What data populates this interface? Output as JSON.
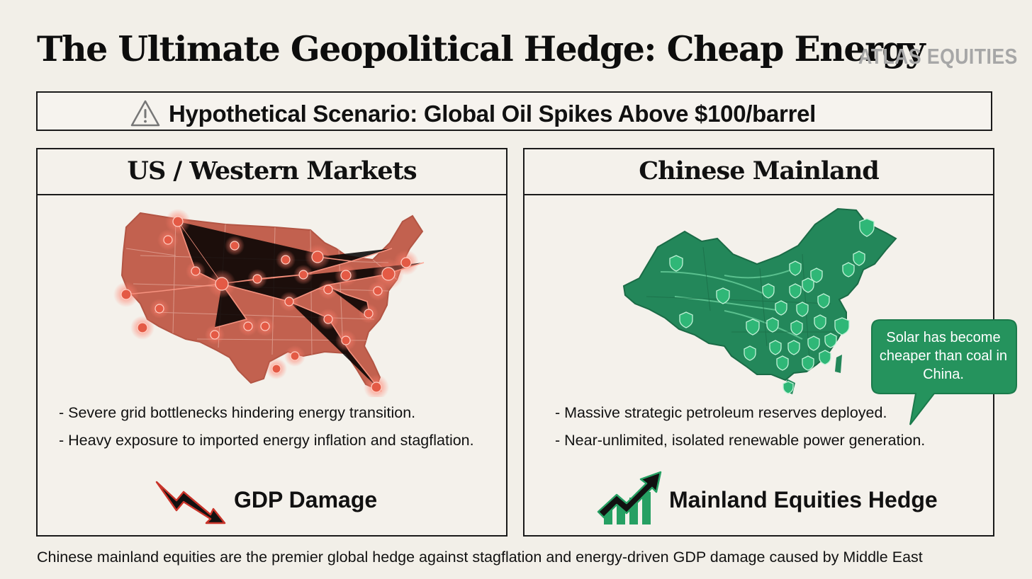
{
  "header": {
    "title": "The Ultimate Geopolitical Hedge: Cheap Energy",
    "brand": "ATLAS EQUITIES"
  },
  "scenario": {
    "icon": "warning-triangle-icon",
    "text": "Hypothetical Scenario: Global Oil Spikes Above $100/barrel"
  },
  "left_panel": {
    "heading": "US / Western Markets",
    "map": "us-map-grid-stress",
    "bullets": [
      "- Severe grid bottlenecks hindering energy transition.",
      "- Heavy exposure to imported energy inflation and stagflation."
    ],
    "result_icon": "trend-down-arrow-icon",
    "result_label": "GDP Damage",
    "accent": "#c2604f"
  },
  "right_panel": {
    "heading": "Chinese Mainland",
    "map": "china-map-shielded",
    "bullets": [
      "- Massive strategic petroleum reserves deployed.",
      "- Near-unlimited, isolated renewable power generation."
    ],
    "callout": "Solar has become cheaper than coal in China.",
    "result_icon": "trend-up-chart-icon",
    "result_label": "Mainland Equities Hedge",
    "accent": "#1f8a55"
  },
  "footer": {
    "text": "Chinese mainland equities are the premier global hedge against stagflation and energy-driven GDP damage caused by Middle East"
  }
}
